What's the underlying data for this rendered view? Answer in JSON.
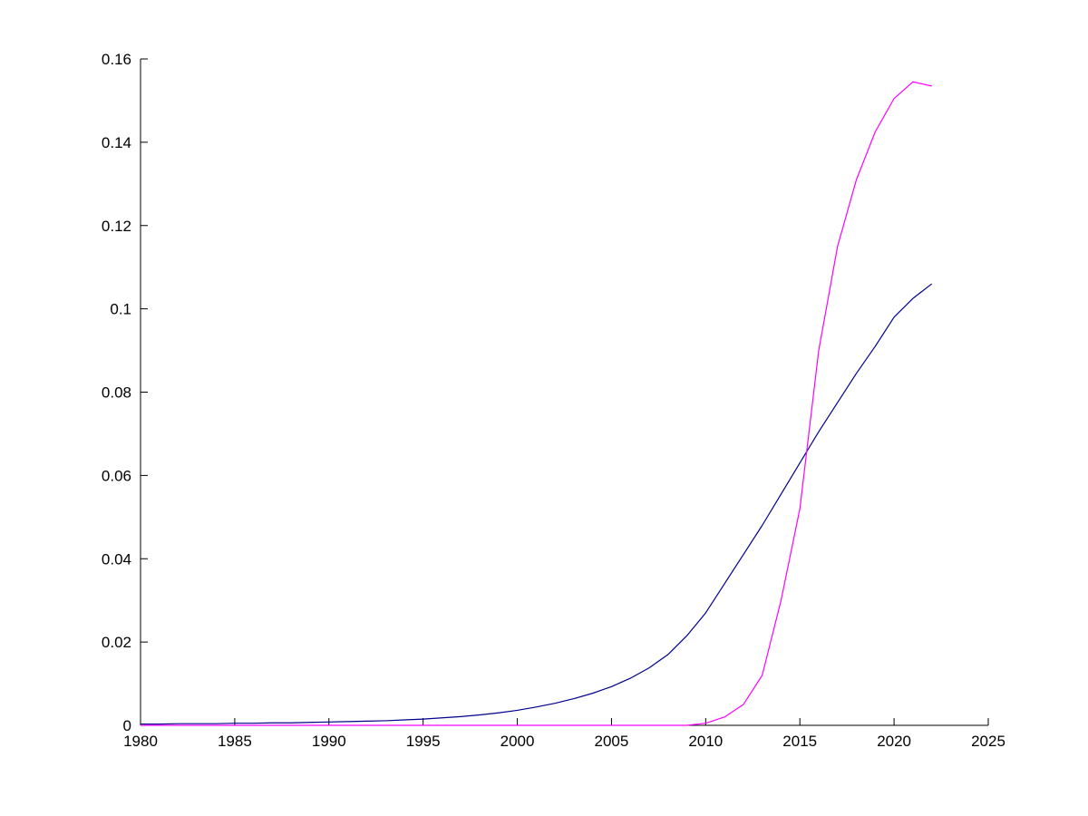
{
  "figure": {
    "background_color": "#ffffff"
  },
  "chart_data": {
    "type": "line",
    "title": "",
    "xlabel": "",
    "ylabel": "",
    "grid": false,
    "legend": "none",
    "axis_color": "#000000",
    "xlim": [
      1980,
      2025
    ],
    "ylim": [
      0,
      0.16
    ],
    "x_ticks": [
      1980,
      1985,
      1990,
      1995,
      2000,
      2005,
      2010,
      2015,
      2020,
      2025
    ],
    "x_tick_labels": [
      "1980",
      "1985",
      "1990",
      "1995",
      "2000",
      "2005",
      "2010",
      "2015",
      "2020",
      "2025"
    ],
    "y_ticks": [
      0,
      0.02,
      0.04,
      0.06,
      0.08,
      0.1,
      0.12,
      0.14,
      0.16
    ],
    "y_tick_labels": [
      "0",
      "0.02",
      "0.04",
      "0.06",
      "0.08",
      "0.1",
      "0.12",
      "0.14",
      "0.16"
    ],
    "x": [
      1980,
      1981,
      1982,
      1983,
      1984,
      1985,
      1986,
      1987,
      1988,
      1989,
      1990,
      1991,
      1992,
      1993,
      1994,
      1995,
      1996,
      1997,
      1998,
      1999,
      2000,
      2001,
      2002,
      2003,
      2004,
      2005,
      2006,
      2007,
      2008,
      2009,
      2010,
      2011,
      2012,
      2013,
      2014,
      2015,
      2016,
      2017,
      2018,
      2019,
      2020,
      2021,
      2022
    ],
    "series": [
      {
        "name": "dark-blue-line",
        "color": "#00008B",
        "values": [
          0.0003,
          0.0003,
          0.0004,
          0.0004,
          0.0004,
          0.0005,
          0.0005,
          0.0006,
          0.0006,
          0.0007,
          0.0008,
          0.0009,
          0.001,
          0.0011,
          0.0013,
          0.0015,
          0.0018,
          0.0021,
          0.0025,
          0.003,
          0.0036,
          0.0044,
          0.0053,
          0.0064,
          0.0077,
          0.0093,
          0.0113,
          0.0138,
          0.017,
          0.0215,
          0.027,
          0.034,
          0.041,
          0.048,
          0.0555,
          0.063,
          0.0705,
          0.0775,
          0.0845,
          0.091,
          0.098,
          0.1025,
          0.106
        ]
      },
      {
        "name": "magenta-line",
        "color": "#FF00FF",
        "values": [
          0,
          0,
          0,
          0,
          0,
          0,
          0,
          0,
          0,
          0,
          0,
          0,
          0,
          0,
          0,
          0,
          0,
          0,
          0,
          0,
          0,
          0,
          0,
          0,
          0,
          0,
          0,
          0,
          0,
          0,
          0.0005,
          0.002,
          0.005,
          0.012,
          0.03,
          0.052,
          0.09,
          0.115,
          0.131,
          0.1425,
          0.1505,
          0.1545,
          0.1535
        ]
      }
    ]
  }
}
